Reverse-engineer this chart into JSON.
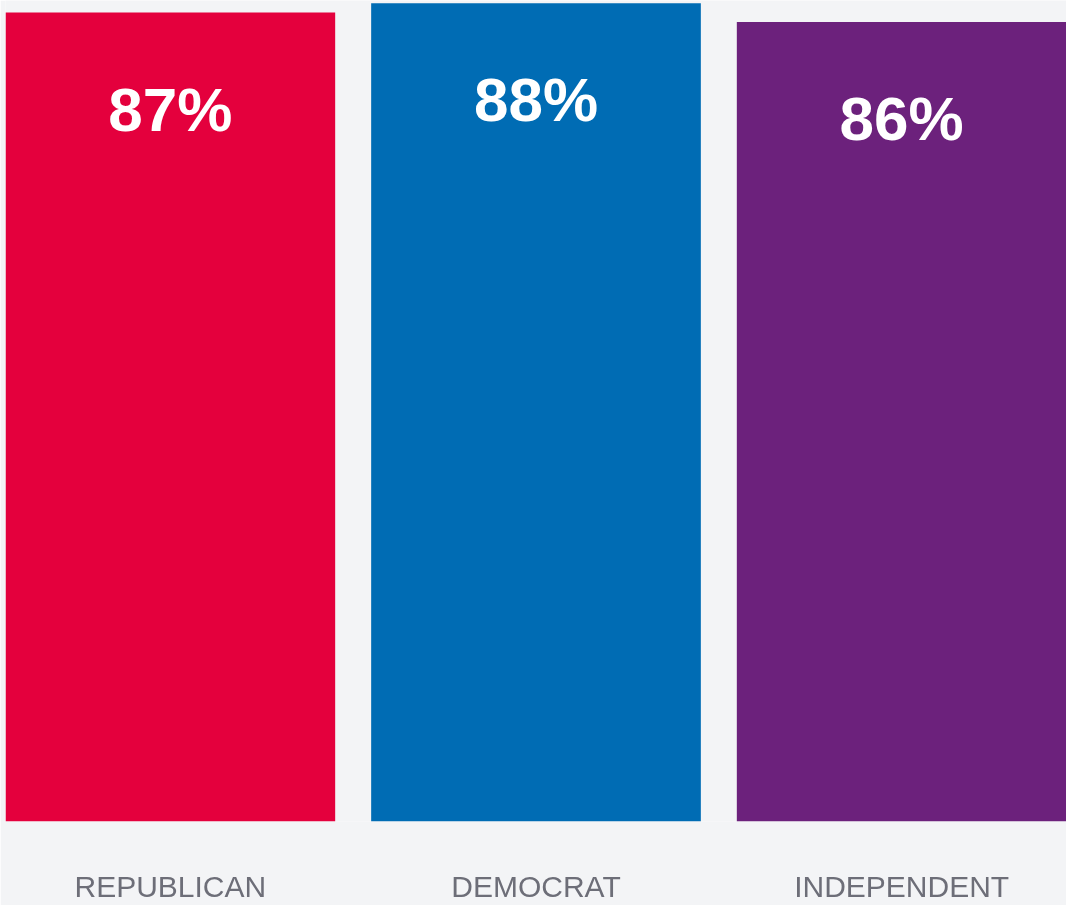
{
  "chart_data": {
    "type": "bar",
    "categories": [
      "REPUBLICAN",
      "DEMOCRAT",
      "INDEPENDENT"
    ],
    "values": [
      87,
      88,
      86
    ],
    "colors": [
      "#e4003d",
      "#006cb4",
      "#6c217c"
    ],
    "value_labels": [
      "87%",
      "88%",
      "86%"
    ],
    "ylim": [
      0,
      88.3
    ],
    "tick_labels": "x",
    "grid": false
  }
}
